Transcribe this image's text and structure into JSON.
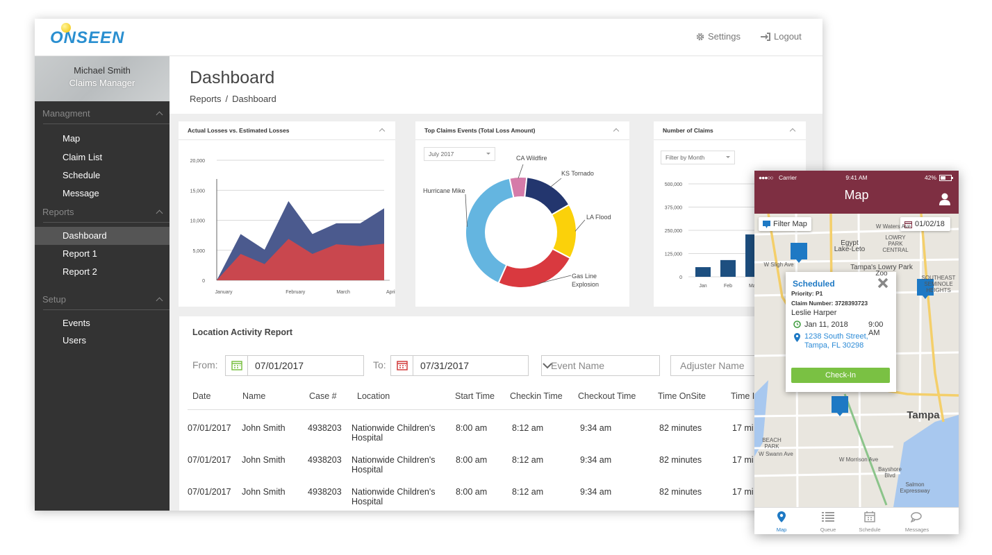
{
  "header": {
    "logo": "ONSEEN",
    "settings": "Settings",
    "logout": "Logout"
  },
  "sidebar": {
    "user": "Michael Smith",
    "role": "Claims Manager",
    "sections": [
      {
        "title": "Managment",
        "items": [
          "Map",
          "Claim List",
          "Schedule",
          "Message"
        ]
      },
      {
        "title": "Reports",
        "items": [
          "Dashboard",
          "Report 1",
          "Report 2"
        ]
      },
      {
        "title": "Setup",
        "items": [
          "Events",
          "Users"
        ]
      }
    ]
  },
  "page": {
    "title": "Dashboard",
    "breadcrumb": {
      "items": [
        "Reports",
        "Dashboard"
      ],
      "separator": "/"
    }
  },
  "chart_data": [
    {
      "type": "area",
      "title": "Actual Losses vs. Estimated Losses",
      "categories": [
        "January",
        null,
        null,
        "February",
        null,
        "March",
        null,
        "April"
      ],
      "series": [
        {
          "color": "#4b5a8e",
          "values": [
            0,
            7700,
            5100,
            13200,
            7700,
            9500,
            9500,
            12000
          ]
        },
        {
          "color": "#c9474e",
          "values": [
            0,
            4400,
            2700,
            6900,
            4400,
            6000,
            5700,
            6100
          ]
        }
      ],
      "ylim": [
        0,
        20000
      ],
      "yticks": [
        0,
        {
          "value": 5000,
          "label": "5,000"
        },
        {
          "value": 10000,
          "label": "10,000"
        },
        {
          "value": 15000,
          "label": "15,000"
        },
        {
          "value": 20000,
          "label": "20,000"
        }
      ],
      "grid": true
    },
    {
      "type": "donut",
      "title": "Top Claims Events (Total Loss Amount)",
      "filter": "July 2017",
      "categories": [
        "CA Wildfire",
        "KS Tornado",
        "LA Flood",
        "Gas Line Explosion",
        "Hurricane Mike"
      ],
      "values": [
        5,
        15,
        16,
        24,
        40
      ],
      "colors": [
        "#d57ba9",
        "#23366e",
        "#fbd10a",
        "#d9393f",
        "#64b5e0"
      ]
    },
    {
      "type": "bar",
      "title": "Number of Claims",
      "filter": "Filter by Month",
      "categories": [
        "Jan",
        "Feb",
        "Mar"
      ],
      "values": [
        52000,
        90000,
        228000
      ],
      "color": "#1d4f80",
      "ylim": [
        0,
        500000
      ],
      "yticks": [
        0,
        {
          "value": 125000,
          "label": "125,000"
        },
        {
          "value": 250000,
          "label": "250,000"
        },
        {
          "value": 375000,
          "label": "375,000"
        },
        {
          "value": 500000,
          "label": "500,000"
        }
      ],
      "grid": true
    }
  ],
  "report": {
    "title": "Location Activity Report",
    "from_label": "From:",
    "from": "07/01/2017",
    "to_label": "To:",
    "to": "07/31/2017",
    "event": "Event Name",
    "adjuster": "Adjuster Name",
    "columns": [
      "Date",
      "Name",
      "Case #",
      "Location",
      "Start Time",
      "Checkin Time",
      "Checkout Time",
      "Time OnSite",
      "Time I"
    ],
    "rows": [
      [
        "07/01/2017",
        "John Smith",
        "4938203",
        "Nationwide Children's Hospital",
        "8:00 am",
        "8:12 am",
        "9:34 am",
        "82 minutes",
        "17 mi"
      ],
      [
        "07/01/2017",
        "John Smith",
        "4938203",
        "Nationwide Children's Hospital",
        "8:00 am",
        "8:12 am",
        "9:34 am",
        "82 minutes",
        "17 mi"
      ],
      [
        "07/01/2017",
        "John Smith",
        "4938203",
        "Nationwide Children's Hospital",
        "8:00 am",
        "8:12 am",
        "9:34 am",
        "82 minutes",
        "17 mi"
      ]
    ]
  },
  "phone": {
    "carrier": "Carrier",
    "time": "9:41 AM",
    "battery": "42%",
    "title": "Map",
    "filter": "Filter Map",
    "date": "01/02/18",
    "map_labels": [
      "W Waters Ave",
      "LOWRY PARK CENTRAL",
      "Egypt Lake-Leto",
      "Tampa's Lowry Park Zoo",
      "W Sligh Ave",
      "SOUTHEAST SEMINOLE HEIGHTS",
      "Tampa",
      "BEACH PARK",
      "W Swann Ave",
      "W Morrison Ave",
      "Bayshore Blvd",
      "Salmon Expressway"
    ],
    "popup": {
      "status": "Scheduled",
      "priority": "Priority: P1",
      "claim": "Claim Number: 3728393723",
      "name": "Leslie Harper",
      "date": "Jan 11, 2018",
      "time": "9:00 AM",
      "address1": "1238 South Street,",
      "address2": "Tampa, FL 30298",
      "button": "Check-In"
    },
    "tabs": [
      "Map",
      "Queue",
      "Schedule",
      "Messages"
    ]
  }
}
